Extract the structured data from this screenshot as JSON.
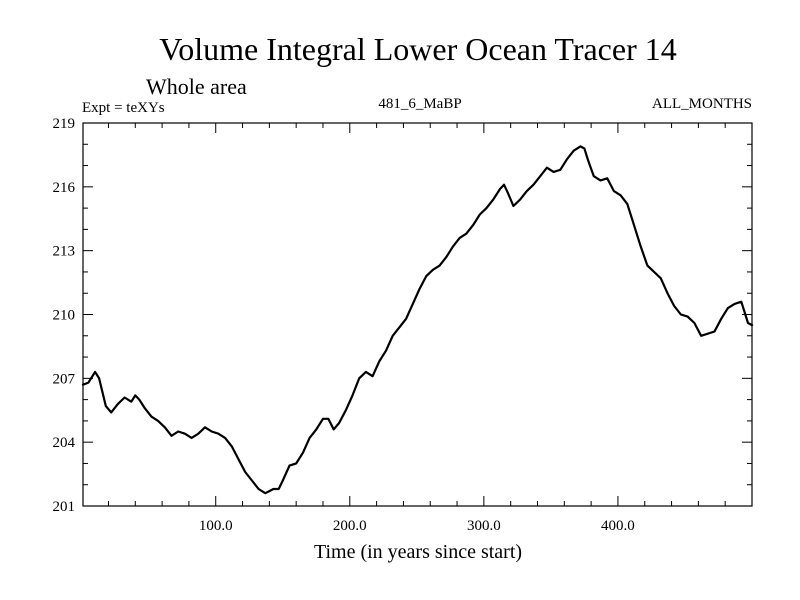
{
  "chart_data": {
    "type": "line",
    "title": "Volume Integral Lower Ocean Tracer 14",
    "subtitle": "Whole area",
    "left_label": "Expt = teXYs",
    "center_label": "481_6_MaBP",
    "right_label": "ALL_MONTHS",
    "xlabel": "Time (in years since start)",
    "ylabel": "",
    "xlim": [
      1,
      500
    ],
    "ylim": [
      201,
      219
    ],
    "xticks": [
      100,
      200,
      300,
      400
    ],
    "xtick_labels": [
      "100.0",
      "200.0",
      "300.0",
      "400.0"
    ],
    "yticks": [
      201,
      204,
      207,
      210,
      213,
      216,
      219
    ],
    "ytick_labels": [
      "201",
      "204",
      "207",
      "210",
      "213",
      "216",
      "219"
    ],
    "grid": false,
    "line_color": "#000000",
    "series": [
      {
        "x": [
          1,
          5,
          10,
          13,
          18,
          22,
          27,
          32,
          37,
          40,
          43,
          47,
          52,
          57,
          62,
          67,
          72,
          77,
          82,
          87,
          92,
          97,
          102,
          107,
          112,
          117,
          122,
          127,
          132,
          137,
          140,
          143,
          147,
          150,
          155,
          160,
          165,
          170,
          175,
          180,
          184,
          188,
          192,
          197,
          202,
          207,
          212,
          217,
          222,
          227,
          232,
          237,
          242,
          247,
          252,
          257,
          262,
          267,
          272,
          277,
          282,
          287,
          292,
          297,
          302,
          307,
          312,
          315,
          318,
          322,
          327,
          332,
          337,
          342,
          347,
          352,
          357,
          362,
          367,
          372,
          375,
          378,
          382,
          387,
          392,
          397,
          402,
          407,
          412,
          417,
          422,
          427,
          432,
          437,
          442,
          447,
          452,
          457,
          462,
          467,
          472,
          477,
          482,
          487,
          492,
          497,
          500
        ],
        "y": [
          206.7,
          206.8,
          207.3,
          207.0,
          205.7,
          205.4,
          205.8,
          206.1,
          205.9,
          206.2,
          206.0,
          205.6,
          205.2,
          205.0,
          204.7,
          204.3,
          204.5,
          204.4,
          204.2,
          204.4,
          204.7,
          204.5,
          204.4,
          204.2,
          203.8,
          203.2,
          202.6,
          202.2,
          201.8,
          201.6,
          201.7,
          201.8,
          201.8,
          202.2,
          202.9,
          203.0,
          203.5,
          204.2,
          204.6,
          205.1,
          205.1,
          204.6,
          204.9,
          205.5,
          206.2,
          207.0,
          207.3,
          207.1,
          207.8,
          208.3,
          209.0,
          209.4,
          209.8,
          210.5,
          211.2,
          211.8,
          212.1,
          212.3,
          212.7,
          213.2,
          213.6,
          213.8,
          214.2,
          214.7,
          215.0,
          215.4,
          215.9,
          216.1,
          215.7,
          215.1,
          215.4,
          215.8,
          216.1,
          216.5,
          216.9,
          216.7,
          216.8,
          217.3,
          217.7,
          217.9,
          217.8,
          217.2,
          216.5,
          216.3,
          216.4,
          215.8,
          215.6,
          215.2,
          214.2,
          213.2,
          212.3,
          212.0,
          211.7,
          211.0,
          210.4,
          210.0,
          209.9,
          209.6,
          209.0,
          209.1,
          209.2,
          209.8,
          210.3,
          210.5,
          210.6,
          209.6,
          209.5
        ]
      }
    ]
  }
}
